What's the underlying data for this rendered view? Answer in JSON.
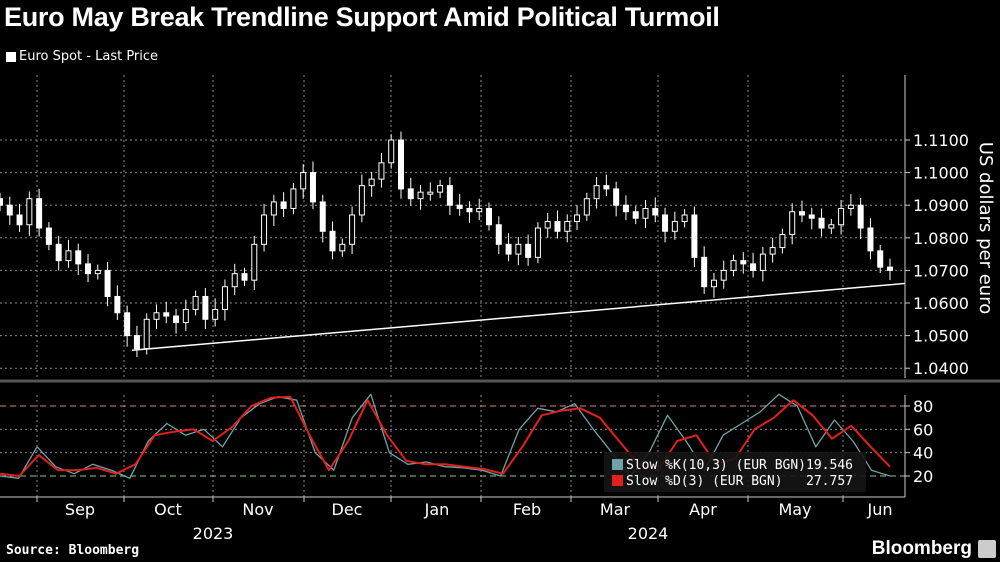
{
  "title": "Euro May Break Trendline Support Amid Political Turmoil",
  "legend_label": "Euro Spot - Last Price",
  "source": "Source: Bloomberg",
  "brand": "Bloomberg",
  "colors": {
    "background": "#000000",
    "price": "#ffffff",
    "k_line": "#6fa3a8",
    "d_line": "#e3201b",
    "grid": "#8a8a8a"
  },
  "chart_data": [
    {
      "type": "candlestick",
      "series_name": "Euro Spot - Last Price",
      "ylabel": "US dollars per euro",
      "ylim": [
        1.0375,
        1.12
      ],
      "yticks": [
        "1.1100",
        "1.1000",
        "1.0900",
        "1.0800",
        "1.0700",
        "1.0600",
        "1.0500",
        "1.0400"
      ],
      "x_range": [
        "2023-08-16",
        "2024-06-12"
      ],
      "close": [
        1.09,
        1.087,
        1.084,
        1.092,
        1.083,
        1.078,
        1.073,
        1.076,
        1.072,
        1.069,
        1.07,
        1.062,
        1.057,
        1.05,
        1.046,
        1.055,
        1.057,
        1.056,
        1.054,
        1.058,
        1.062,
        1.055,
        1.058,
        1.065,
        1.069,
        1.067,
        1.078,
        1.087,
        1.091,
        1.089,
        1.095,
        1.1,
        1.091,
        1.082,
        1.076,
        1.078,
        1.087,
        1.096,
        1.098,
        1.103,
        1.11,
        1.095,
        1.092,
        1.094,
        1.094,
        1.096,
        1.09,
        1.089,
        1.088,
        1.089,
        1.084,
        1.078,
        1.075,
        1.078,
        1.074,
        1.083,
        1.085,
        1.082,
        1.085,
        1.087,
        1.092,
        1.096,
        1.095,
        1.09,
        1.088,
        1.086,
        1.089,
        1.087,
        1.082,
        1.085,
        1.087,
        1.074,
        1.065,
        1.067,
        1.07,
        1.073,
        1.072,
        1.07,
        1.075,
        1.077,
        1.081,
        1.088,
        1.087,
        1.086,
        1.083,
        1.084,
        1.089,
        1.09,
        1.083,
        1.076,
        1.071,
        1.07
      ],
      "trendline": {
        "start": 1.0455,
        "end": 1.066
      },
      "grid": true
    },
    {
      "type": "line",
      "yticks": [
        "80",
        "60",
        "40",
        "20"
      ],
      "ylim": [
        0,
        100
      ],
      "reference_lines": [
        80,
        20
      ],
      "x_ticks": [
        "Sep",
        "Oct",
        "Nov",
        "Dec",
        "Jan",
        "Feb",
        "Mar",
        "Apr",
        "May",
        "Jun"
      ],
      "year_labels": [
        "2023",
        "2024"
      ],
      "series": [
        {
          "name": "Slow %K(10,3) (EUR BGN)",
          "last": "19.546",
          "values": [
            20,
            18,
            45,
            28,
            22,
            30,
            25,
            18,
            50,
            65,
            55,
            60,
            45,
            70,
            82,
            88,
            85,
            40,
            25,
            70,
            90,
            40,
            30,
            32,
            28,
            27,
            25,
            20,
            60,
            78,
            75,
            82,
            60,
            40,
            20,
            40,
            72,
            50,
            25,
            55,
            65,
            75,
            90,
            80,
            45,
            68,
            50,
            25,
            20
          ]
        },
        {
          "name": "Slow %D(3) (EUR BGN)",
          "last": "27.757",
          "values": [
            22,
            20,
            38,
            25,
            25,
            27,
            22,
            30,
            55,
            58,
            60,
            50,
            62,
            80,
            87,
            88,
            55,
            25,
            50,
            85,
            55,
            33,
            30,
            30,
            28,
            26,
            22,
            45,
            72,
            76,
            78,
            70,
            50,
            30,
            25,
            50,
            55,
            30,
            35,
            60,
            70,
            85,
            72,
            52,
            63,
            45,
            28
          ]
        }
      ],
      "grid": true
    }
  ]
}
